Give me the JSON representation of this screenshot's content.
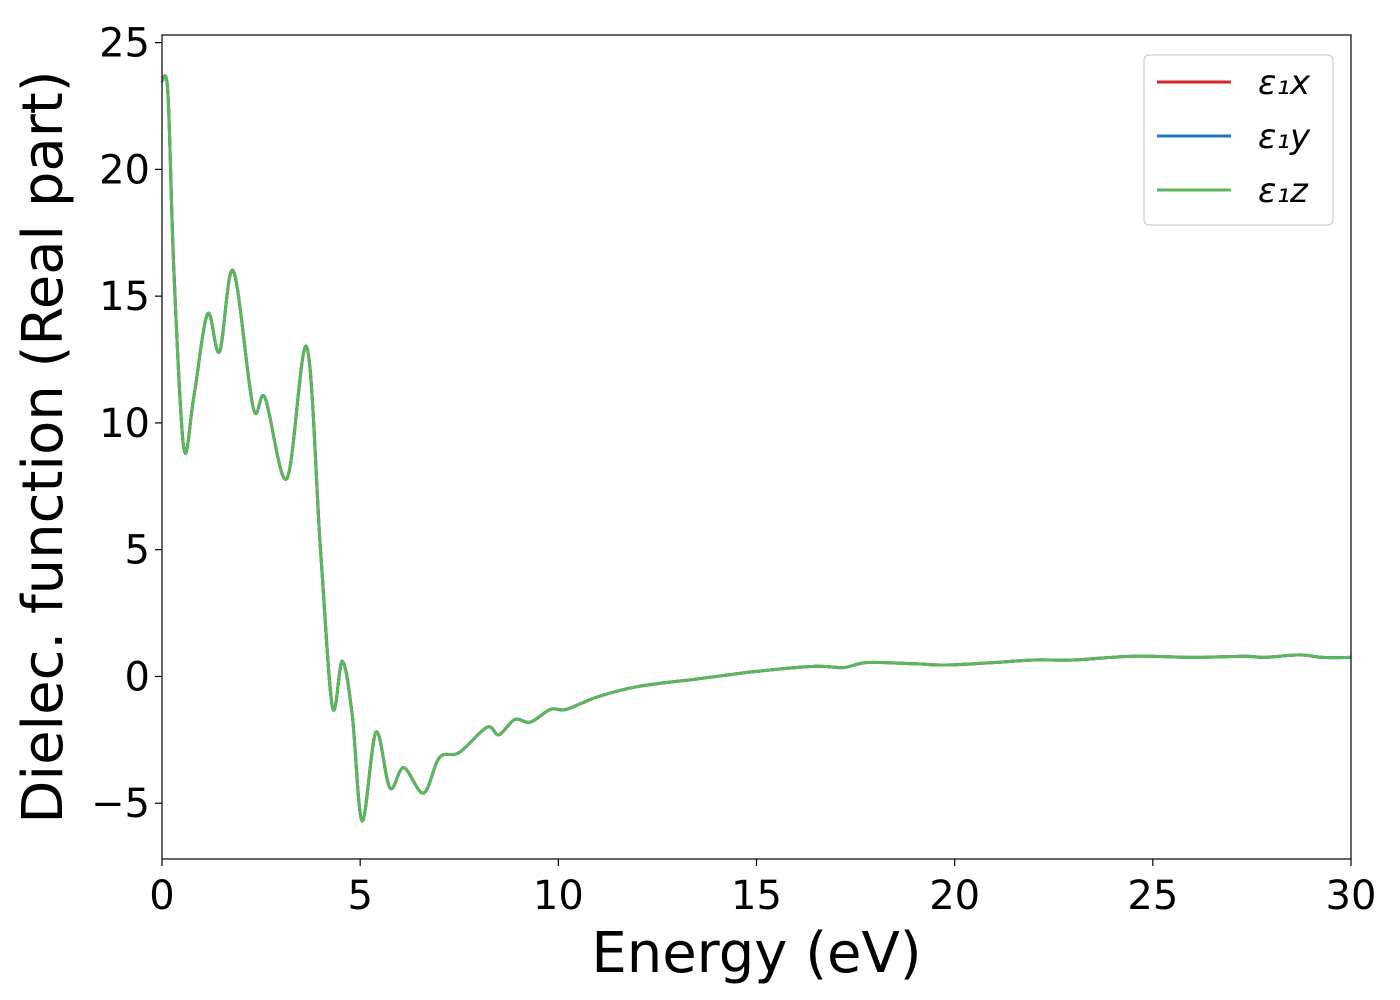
{
  "chart_data": {
    "type": "line",
    "xlabel": "Energy (eV)",
    "ylabel": "Dielec. function (Real part)",
    "xlim": [
      0,
      30
    ],
    "ylim": [
      -7.2,
      25.3
    ],
    "xticks": [
      0,
      5,
      10,
      15,
      20,
      25,
      30
    ],
    "xtick_labels": [
      "0",
      "5",
      "10",
      "15",
      "20",
      "25",
      "30"
    ],
    "yticks": [
      -5,
      0,
      5,
      10,
      15,
      20,
      25
    ],
    "ytick_labels": [
      "−5",
      "0",
      "5",
      "10",
      "15",
      "20",
      "25"
    ],
    "grid": false,
    "legend_position": "top-right",
    "series": [
      {
        "name": "ε₁x",
        "color": "#d62728",
        "x": [
          0,
          0.15,
          0.3,
          0.55,
          0.8,
          1.15,
          1.45,
          1.8,
          2.3,
          2.6,
          3.15,
          3.65,
          4.0,
          4.3,
          4.55,
          4.8,
          5.05,
          5.4,
          5.75,
          6.1,
          6.6,
          7.0,
          7.5,
          8.2,
          8.5,
          8.9,
          9.3,
          9.8,
          10.2,
          11.0,
          12.0,
          13.5,
          15.0,
          16.5,
          17.2,
          17.8,
          19.0,
          19.8,
          21.0,
          22.0,
          23.0,
          24.5,
          26.0,
          27.3,
          27.8,
          28.7,
          29.3,
          30.0
        ],
        "y": [
          23.5,
          23.0,
          16.0,
          9.0,
          11.0,
          14.3,
          12.8,
          16.0,
          10.6,
          11.0,
          7.8,
          13.0,
          5.0,
          -1.2,
          0.6,
          -1.5,
          -5.7,
          -2.2,
          -4.4,
          -3.6,
          -4.6,
          -3.2,
          -3.0,
          -2.0,
          -2.3,
          -1.7,
          -1.8,
          -1.3,
          -1.3,
          -0.8,
          -0.4,
          -0.1,
          0.2,
          0.4,
          0.35,
          0.55,
          0.5,
          0.45,
          0.55,
          0.65,
          0.65,
          0.8,
          0.75,
          0.8,
          0.75,
          0.85,
          0.75,
          0.75
        ]
      },
      {
        "name": "ε₁y",
        "color": "#1f77b4",
        "x": [
          0,
          0.15,
          0.3,
          0.55,
          0.8,
          1.15,
          1.45,
          1.8,
          2.3,
          2.6,
          3.15,
          3.65,
          4.0,
          4.3,
          4.55,
          4.8,
          5.05,
          5.4,
          5.75,
          6.1,
          6.6,
          7.0,
          7.5,
          8.2,
          8.5,
          8.9,
          9.3,
          9.8,
          10.2,
          11.0,
          12.0,
          13.5,
          15.0,
          16.5,
          17.2,
          17.8,
          19.0,
          19.8,
          21.0,
          22.0,
          23.0,
          24.5,
          26.0,
          27.3,
          27.8,
          28.7,
          29.3,
          30.0
        ],
        "y": [
          23.5,
          23.0,
          16.0,
          9.0,
          11.0,
          14.3,
          12.8,
          16.0,
          10.6,
          11.0,
          7.8,
          13.0,
          5.0,
          -1.2,
          0.6,
          -1.5,
          -5.7,
          -2.2,
          -4.4,
          -3.6,
          -4.6,
          -3.2,
          -3.0,
          -2.0,
          -2.3,
          -1.7,
          -1.8,
          -1.3,
          -1.3,
          -0.8,
          -0.4,
          -0.1,
          0.2,
          0.4,
          0.35,
          0.55,
          0.5,
          0.45,
          0.55,
          0.65,
          0.65,
          0.8,
          0.75,
          0.8,
          0.75,
          0.85,
          0.75,
          0.75
        ]
      },
      {
        "name": "ε₁z",
        "color": "#5cb65c",
        "x": [
          0,
          0.15,
          0.3,
          0.55,
          0.8,
          1.15,
          1.45,
          1.8,
          2.3,
          2.6,
          3.15,
          3.65,
          4.0,
          4.3,
          4.55,
          4.8,
          5.05,
          5.4,
          5.75,
          6.1,
          6.6,
          7.0,
          7.5,
          8.2,
          8.5,
          8.9,
          9.3,
          9.8,
          10.2,
          11.0,
          12.0,
          13.5,
          15.0,
          16.5,
          17.2,
          17.8,
          19.0,
          19.8,
          21.0,
          22.0,
          23.0,
          24.5,
          26.0,
          27.3,
          27.8,
          28.7,
          29.3,
          30.0
        ],
        "y": [
          23.5,
          23.0,
          16.0,
          9.0,
          11.0,
          14.3,
          12.8,
          16.0,
          10.6,
          11.0,
          7.8,
          13.0,
          5.0,
          -1.2,
          0.6,
          -1.5,
          -5.7,
          -2.2,
          -4.4,
          -3.6,
          -4.6,
          -3.2,
          -3.0,
          -2.0,
          -2.3,
          -1.7,
          -1.8,
          -1.3,
          -1.3,
          -0.8,
          -0.4,
          -0.1,
          0.2,
          0.4,
          0.35,
          0.55,
          0.5,
          0.45,
          0.55,
          0.65,
          0.65,
          0.8,
          0.75,
          0.8,
          0.75,
          0.85,
          0.75,
          0.75
        ]
      }
    ]
  }
}
